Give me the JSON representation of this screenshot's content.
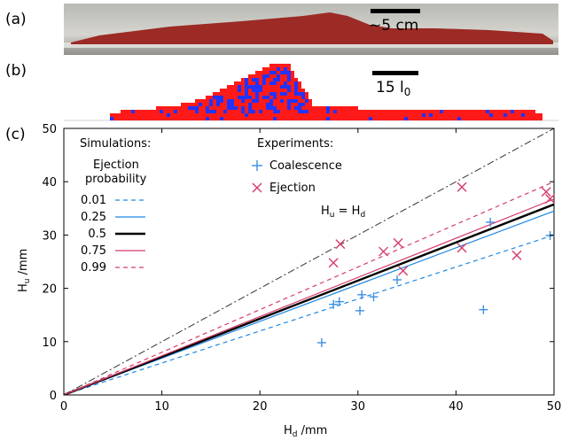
{
  "panels": {
    "a": {
      "label": "(a)",
      "scale_label": "~5 cm"
    },
    "b": {
      "label": "(b)",
      "scale_label_main": "15 l",
      "scale_label_sub": "0"
    },
    "c": {
      "label": "(c)"
    }
  },
  "colors": {
    "sim": "#1e88e5",
    "sim_thick": "#000000",
    "exp": "#d63c6a",
    "equal_line": "#333333",
    "coalescence": "#3c8fe0",
    "ejection": "#d63c6a",
    "pile_red": "#ff1a1a",
    "pile_blue": "#2233ff",
    "photo_red": "#9c2a25"
  },
  "legend": {
    "sim_title_1": "Simulations:",
    "sim_title_2": "Ejection",
    "sim_title_3": "probability",
    "exp_title": "Experiments:",
    "coalescence": "Coalescence",
    "ejection": "Ejection",
    "equal_label_main": "H",
    "equal_label_sub1": "u",
    "equal_label_mid": " = H",
    "equal_label_sub2": "d"
  },
  "chart_data": {
    "type": "scatter",
    "xlabel_main": "H",
    "xlabel_sub": "d",
    "xlabel_unit": " /mm",
    "ylabel_main": "H",
    "ylabel_sub": "u",
    "ylabel_unit": " /mm",
    "xlim": [
      0,
      50
    ],
    "ylim": [
      0,
      50
    ],
    "xticks": [
      0,
      10,
      20,
      30,
      40,
      50
    ],
    "yticks": [
      0,
      10,
      20,
      30,
      40,
      50
    ],
    "grid": false,
    "reference_line": {
      "label": "Hu = Hd",
      "slope": 1.0
    },
    "sim_lines": [
      {
        "name": "0.01",
        "slope": 0.6,
        "style": "dashed",
        "color": "#1e88e5",
        "width": 1.2
      },
      {
        "name": "0.25",
        "slope": 0.69,
        "style": "solid",
        "color": "#1e88e5",
        "width": 1.2
      },
      {
        "name": "0.5",
        "slope": 0.715,
        "style": "solid",
        "color": "#000000",
        "width": 2.4
      },
      {
        "name": "0.75",
        "slope": 0.735,
        "style": "solid",
        "color": "#d63c6a",
        "width": 1.2
      },
      {
        "name": "0.99",
        "slope": 0.8,
        "style": "dashed",
        "color": "#d63c6a",
        "width": 1.2
      }
    ],
    "coalescence": [
      [
        26.3,
        9.8
      ],
      [
        27.5,
        17.0
      ],
      [
        28.1,
        17.5
      ],
      [
        30.2,
        15.8
      ],
      [
        30.4,
        18.8
      ],
      [
        31.6,
        18.4
      ],
      [
        34.0,
        21.6
      ],
      [
        43.5,
        32.4
      ],
      [
        42.8,
        16.0
      ],
      [
        49.6,
        29.9
      ]
    ],
    "ejection": [
      [
        27.5,
        24.8
      ],
      [
        28.2,
        28.3
      ],
      [
        32.6,
        26.9
      ],
      [
        34.1,
        28.5
      ],
      [
        34.6,
        23.3
      ],
      [
        40.6,
        39.0
      ],
      [
        40.6,
        27.6
      ],
      [
        46.2,
        26.2
      ],
      [
        49.2,
        38.1
      ],
      [
        49.6,
        36.8
      ]
    ]
  }
}
